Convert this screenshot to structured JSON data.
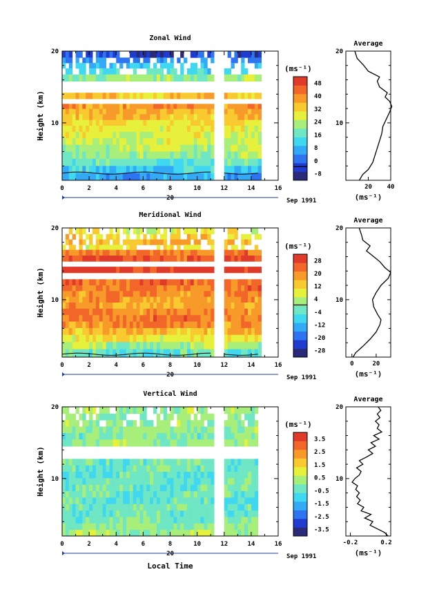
{
  "chart_data": [
    {
      "type": "heatmap",
      "title": "Zonal Wind",
      "xlabel": "",
      "ylabel": "Height (km)",
      "xlim": [
        0,
        16
      ],
      "ylim": [
        2,
        20
      ],
      "xticks": [
        "0",
        "2",
        "4",
        "6",
        "8",
        "10",
        "12",
        "14",
        "16"
      ],
      "yticks": [
        "10",
        "20"
      ],
      "date_label": "Sep 1991",
      "day_label": "20",
      "data_gap": [
        11.2,
        11.9
      ],
      "data_end": 14.6,
      "colorbar_unit": "(ms⁻¹)",
      "colorbar_ticks": [
        "48",
        "40",
        "32",
        "24",
        "16",
        "8",
        "0",
        "-8"
      ],
      "colorbar_min": -12,
      "colorbar_max": 52,
      "zero_tick": "0",
      "rows": [
        {
          "h": 19.5,
          "v": -4
        },
        {
          "h": 18.7,
          "v": 4
        },
        {
          "h": 18.0,
          "v": 10
        },
        {
          "h": 17.2,
          "v": 14
        },
        {
          "h": 16.3,
          "v": 22
        },
        {
          "h": 15.3,
          "v": null
        },
        {
          "h": 14.7,
          "v": null
        },
        {
          "h": 13.7,
          "v": 33
        },
        {
          "h": 13.0,
          "v": null
        },
        {
          "h": 12.3,
          "v": 40
        },
        {
          "h": 11.6,
          "v": 36
        },
        {
          "h": 10.8,
          "v": 34
        },
        {
          "h": 10.0,
          "v": 30
        },
        {
          "h": 9.2,
          "v": 29
        },
        {
          "h": 8.3,
          "v": 27
        },
        {
          "h": 7.4,
          "v": 26
        },
        {
          "h": 6.5,
          "v": 24
        },
        {
          "h": 5.5,
          "v": 21
        },
        {
          "h": 4.5,
          "v": 16
        },
        {
          "h": 3.5,
          "v": 11
        },
        {
          "h": 2.5,
          "v": 6
        }
      ],
      "zero_line_km": 3.0,
      "average": {
        "title": "Average",
        "xlabel": "(ms⁻¹)",
        "xlim": [
          0,
          40
        ],
        "xticks": [
          "20",
          "40"
        ],
        "yticks": [
          "10",
          "20"
        ],
        "profile": [
          {
            "h": 2.0,
            "v": 12
          },
          {
            "h": 2.8,
            "v": 15
          },
          {
            "h": 3.5,
            "v": 20
          },
          {
            "h": 4.5,
            "v": 24
          },
          {
            "h": 5.5,
            "v": 26
          },
          {
            "h": 6.5,
            "v": 28
          },
          {
            "h": 7.5,
            "v": 30
          },
          {
            "h": 8.5,
            "v": 32
          },
          {
            "h": 9.5,
            "v": 33
          },
          {
            "h": 10.5,
            "v": 36
          },
          {
            "h": 11.5,
            "v": 39
          },
          {
            "h": 12.3,
            "v": 41
          },
          {
            "h": 13.0,
            "v": 39
          },
          {
            "h": 13.6,
            "v": 35
          },
          {
            "h": 14.2,
            "v": 37
          },
          {
            "h": 15.0,
            "v": 30
          },
          {
            "h": 15.8,
            "v": 28
          },
          {
            "h": 16.4,
            "v": 30
          },
          {
            "h": 17.2,
            "v": 20
          },
          {
            "h": 18.0,
            "v": 16
          },
          {
            "h": 19.0,
            "v": 10
          },
          {
            "h": 20.0,
            "v": 8
          }
        ]
      }
    },
    {
      "type": "heatmap",
      "title": "Meridional Wind",
      "xlabel": "",
      "ylabel": "Height (km)",
      "xlim": [
        0,
        16
      ],
      "ylim": [
        2,
        20
      ],
      "xticks": [
        "0",
        "2",
        "4",
        "6",
        "8",
        "10",
        "12",
        "14",
        "16"
      ],
      "yticks": [
        "10",
        "20"
      ],
      "date_label": "Sep 1991",
      "day_label": "20",
      "data_gap": [
        11.2,
        11.9
      ],
      "data_end": 14.6,
      "colorbar_unit": "(ms⁻¹)",
      "colorbar_ticks": [
        "28",
        "20",
        "12",
        "4",
        "-4",
        "-12",
        "-20",
        "-28"
      ],
      "colorbar_min": -32,
      "colorbar_max": 32,
      "zero_tick": "4",
      "rows": [
        {
          "h": 19.5,
          "v": 8
        },
        {
          "h": 18.8,
          "v": 12
        },
        {
          "h": 18.0,
          "v": 16
        },
        {
          "h": 17.3,
          "v": 10
        },
        {
          "h": 16.6,
          "v": 22
        },
        {
          "h": 15.7,
          "v": 26
        },
        {
          "h": 15.0,
          "v": null
        },
        {
          "h": 14.2,
          "v": 30
        },
        {
          "h": 13.3,
          "v": null
        },
        {
          "h": 12.4,
          "v": 24
        },
        {
          "h": 11.6,
          "v": 22
        },
        {
          "h": 10.8,
          "v": 20
        },
        {
          "h": 10.0,
          "v": 18
        },
        {
          "h": 9.2,
          "v": 17
        },
        {
          "h": 8.3,
          "v": 21
        },
        {
          "h": 7.4,
          "v": 22
        },
        {
          "h": 6.5,
          "v": 20
        },
        {
          "h": 5.6,
          "v": 15
        },
        {
          "h": 4.6,
          "v": 9
        },
        {
          "h": 3.6,
          "v": 2
        },
        {
          "h": 2.6,
          "v": -4
        }
      ],
      "zero_line_km": 2.4,
      "average": {
        "title": "Average",
        "xlabel": "(ms⁻¹)",
        "xlim": [
          -5,
          32
        ],
        "xticks": [
          "0",
          "20"
        ],
        "yticks": [
          "10",
          "20"
        ],
        "profile": [
          {
            "h": 2.0,
            "v": 1
          },
          {
            "h": 2.6,
            "v": 3
          },
          {
            "h": 3.5,
            "v": 9
          },
          {
            "h": 4.5,
            "v": 15
          },
          {
            "h": 5.5,
            "v": 20
          },
          {
            "h": 6.5,
            "v": 23
          },
          {
            "h": 7.2,
            "v": 24
          },
          {
            "h": 8.0,
            "v": 21
          },
          {
            "h": 9.0,
            "v": 18
          },
          {
            "h": 10.0,
            "v": 17
          },
          {
            "h": 11.0,
            "v": 20
          },
          {
            "h": 12.0,
            "v": 24
          },
          {
            "h": 13.0,
            "v": 30
          },
          {
            "h": 13.8,
            "v": 32
          },
          {
            "h": 14.5,
            "v": 27
          },
          {
            "h": 15.3,
            "v": 23
          },
          {
            "h": 16.0,
            "v": 18
          },
          {
            "h": 16.8,
            "v": 12
          },
          {
            "h": 17.5,
            "v": 15
          },
          {
            "h": 18.3,
            "v": 9
          },
          {
            "h": 19.0,
            "v": 8
          },
          {
            "h": 20.0,
            "v": 6
          }
        ]
      }
    },
    {
      "type": "heatmap",
      "title": "Vertical Wind",
      "xlabel": "Local Time",
      "ylabel": "Height (km)",
      "xlim": [
        0,
        16
      ],
      "ylim": [
        2,
        20
      ],
      "xticks": [
        "0",
        "2",
        "4",
        "6",
        "8",
        "10",
        "12",
        "14",
        "16"
      ],
      "yticks": [
        "10",
        "20"
      ],
      "date_label": "Sep 1991",
      "day_label": "20",
      "data_gap": [
        11.2,
        11.9
      ],
      "data_end": 14.5,
      "colorbar_unit": "(ms⁻¹)",
      "colorbar_ticks": [
        "3.5",
        "2.5",
        "1.5",
        "0.5",
        "-0.5",
        "-1.5",
        "-2.5",
        "-3.5"
      ],
      "colorbar_min": -4,
      "colorbar_max": 4,
      "zero_tick": "",
      "rows": [
        {
          "h": 19.5,
          "v": 0.2
        },
        {
          "h": 18.6,
          "v": 0.0
        },
        {
          "h": 17.7,
          "v": 0.1
        },
        {
          "h": 16.8,
          "v": 0.2
        },
        {
          "h": 15.9,
          "v": -0.1
        },
        {
          "h": 15.0,
          "v": 0.1
        },
        {
          "h": 14.0,
          "v": null
        },
        {
          "h": 13.2,
          "v": null
        },
        {
          "h": 12.3,
          "v": -0.2
        },
        {
          "h": 11.4,
          "v": -0.3
        },
        {
          "h": 10.5,
          "v": -0.5
        },
        {
          "h": 9.6,
          "v": -0.4
        },
        {
          "h": 8.7,
          "v": -0.3
        },
        {
          "h": 7.8,
          "v": -0.4
        },
        {
          "h": 6.9,
          "v": -0.5
        },
        {
          "h": 6.0,
          "v": -0.3
        },
        {
          "h": 5.1,
          "v": -0.4
        },
        {
          "h": 4.2,
          "v": -0.2
        },
        {
          "h": 3.3,
          "v": 0.0
        },
        {
          "h": 2.4,
          "v": 0.3
        }
      ],
      "zero_line_km": null,
      "average": {
        "title": "Average",
        "xlabel": "(ms⁻¹)",
        "xlim": [
          -0.25,
          0.25
        ],
        "xticks": [
          "-0.2",
          "0.2"
        ],
        "yticks": [
          "10",
          "20"
        ],
        "profile": [
          {
            "h": 2.0,
            "v": 0.22
          },
          {
            "h": 2.5,
            "v": 0.18
          },
          {
            "h": 3.0,
            "v": 0.1
          },
          {
            "h": 3.5,
            "v": 0.02
          },
          {
            "h": 4.0,
            "v": 0.05
          },
          {
            "h": 4.5,
            "v": -0.04
          },
          {
            "h": 5.0,
            "v": 0.03
          },
          {
            "h": 5.5,
            "v": -0.08
          },
          {
            "h": 6.0,
            "v": -0.05
          },
          {
            "h": 6.5,
            "v": -0.12
          },
          {
            "h": 7.0,
            "v": -0.09
          },
          {
            "h": 7.5,
            "v": -0.13
          },
          {
            "h": 8.0,
            "v": -0.1
          },
          {
            "h": 8.5,
            "v": -0.14
          },
          {
            "h": 9.0,
            "v": -0.12
          },
          {
            "h": 9.5,
            "v": -0.18
          },
          {
            "h": 10.0,
            "v": -0.15
          },
          {
            "h": 10.5,
            "v": -0.1
          },
          {
            "h": 11.0,
            "v": -0.08
          },
          {
            "h": 11.5,
            "v": -0.13
          },
          {
            "h": 12.0,
            "v": -0.06
          },
          {
            "h": 12.5,
            "v": -0.1
          },
          {
            "h": 13.0,
            "v": -0.02
          },
          {
            "h": 13.5,
            "v": 0.05
          },
          {
            "h": 14.0,
            "v": 0.0
          },
          {
            "h": 14.5,
            "v": 0.08
          },
          {
            "h": 15.0,
            "v": 0.03
          },
          {
            "h": 15.5,
            "v": 0.12
          },
          {
            "h": 16.0,
            "v": 0.06
          },
          {
            "h": 16.5,
            "v": 0.15
          },
          {
            "h": 17.0,
            "v": 0.1
          },
          {
            "h": 17.5,
            "v": 0.12
          },
          {
            "h": 18.0,
            "v": 0.08
          },
          {
            "h": 18.5,
            "v": 0.13
          },
          {
            "h": 19.0,
            "v": 0.1
          },
          {
            "h": 19.5,
            "v": 0.14
          },
          {
            "h": 20.0,
            "v": 0.11
          }
        ]
      }
    }
  ],
  "colors": {
    "scale": [
      "#2a2a7a",
      "#1f3bd0",
      "#2e74f0",
      "#33aaf5",
      "#3fd8f0",
      "#6fe6c4",
      "#a8ee7a",
      "#e7f03a",
      "#f9c930",
      "#f79a2a",
      "#f2662a",
      "#e03a2a"
    ]
  }
}
